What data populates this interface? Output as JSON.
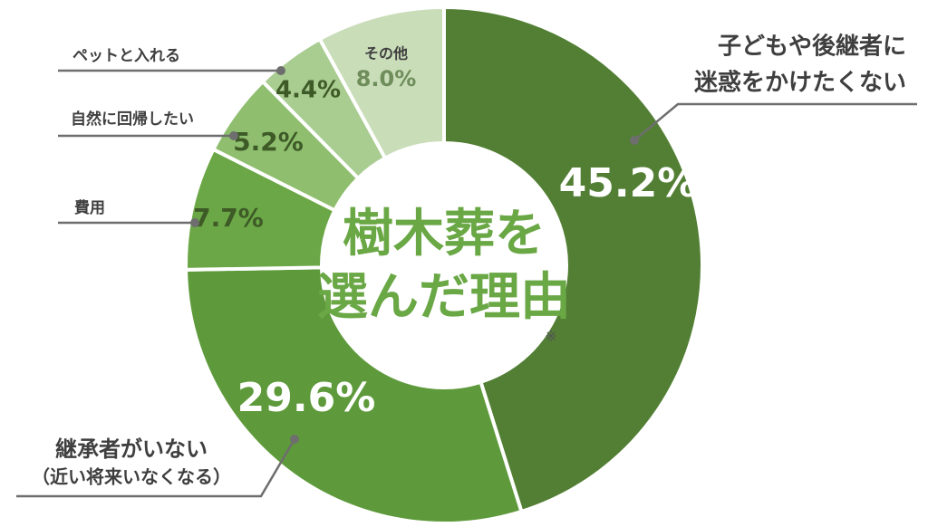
{
  "chart_data": {
    "type": "donut",
    "title": [
      "樹木葬を",
      "選んだ理由"
    ],
    "note": "※",
    "categories": [
      [
        "子どもや後継者に",
        "迷惑をかけたくない"
      ],
      [
        "継承者がいない",
        "（近い将来いなくなる）"
      ],
      [
        "費用"
      ],
      [
        "自然に回帰したい"
      ],
      [
        "ペットと入れる"
      ],
      [
        "その他"
      ]
    ],
    "values": [
      45.2,
      29.6,
      7.7,
      5.2,
      4.4,
      8.0
    ],
    "value_labels": [
      "45.2%",
      "29.6%",
      "7.7%",
      "5.2%",
      "4.4%",
      "8.0%"
    ],
    "colors": [
      "#527f34",
      "#5e9a3b",
      "#6ba746",
      "#8fbe6e",
      "#a9cc91",
      "#c9ddb9"
    ]
  }
}
